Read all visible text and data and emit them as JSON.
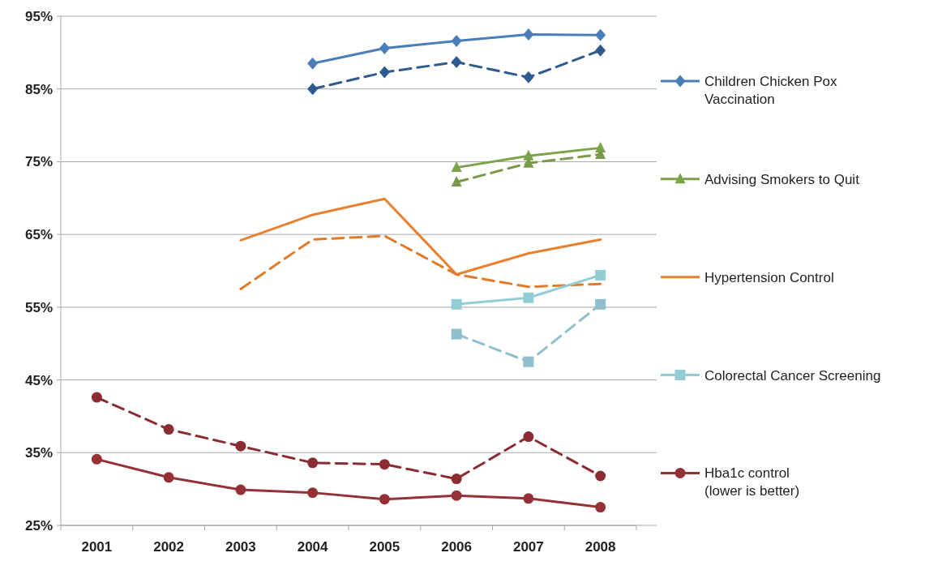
{
  "chart_data": {
    "type": "line",
    "categories": [
      "2001",
      "2002",
      "2003",
      "2004",
      "2005",
      "2006",
      "2007",
      "2008"
    ],
    "ylim": [
      25,
      95
    ],
    "yticks": [
      {
        "value": 25,
        "label": "25%"
      },
      {
        "value": 35,
        "label": "35%"
      },
      {
        "value": 45,
        "label": "45%"
      },
      {
        "value": 55,
        "label": "55%"
      },
      {
        "value": 65,
        "label": "65%"
      },
      {
        "value": 75,
        "label": "75%"
      },
      {
        "value": 85,
        "label": "85%"
      },
      {
        "value": 95,
        "label": "95%"
      }
    ],
    "grid": "y",
    "legend": "right",
    "series": [
      {
        "name": "Children Chicken Pox Vaccination",
        "color": "#4a7ebb",
        "marker": "diamond",
        "line_style": "solid",
        "values": [
          null,
          null,
          null,
          88.5,
          90.6,
          91.6,
          92.5,
          92.4
        ]
      },
      {
        "color": "#2e5a8f",
        "marker": "diamond",
        "line_style": "dashed",
        "values": [
          null,
          null,
          null,
          85.0,
          87.3,
          88.7,
          86.6,
          90.3
        ]
      },
      {
        "name": "Advising Smokers to Quit",
        "color": "#7ba34a",
        "marker": "triangle",
        "line_style": "solid",
        "values": [
          null,
          null,
          null,
          null,
          null,
          74.2,
          75.8,
          76.9
        ]
      },
      {
        "color": "#7a9a4a",
        "marker": "triangle",
        "line_style": "dashed",
        "values": [
          null,
          null,
          null,
          null,
          null,
          72.2,
          74.8,
          76.0
        ]
      },
      {
        "name": "Hypertension Control",
        "color": "#e8802e",
        "marker": "none",
        "line_style": "solid",
        "values": [
          null,
          null,
          64.2,
          67.7,
          69.9,
          59.5,
          62.4,
          64.3
        ]
      },
      {
        "color": "#e07b2a",
        "marker": "none",
        "line_style": "dashed",
        "values": [
          null,
          null,
          57.5,
          64.3,
          64.8,
          59.5,
          57.8,
          58.2
        ]
      },
      {
        "name": "Colorectal Cancer Screening",
        "color": "#93cdd4",
        "marker": "square",
        "line_style": "solid",
        "values": [
          null,
          null,
          null,
          null,
          null,
          55.4,
          56.3,
          59.4
        ]
      },
      {
        "color": "#8fbfcc",
        "marker": "square",
        "line_style": "dashed",
        "values": [
          null,
          null,
          null,
          null,
          null,
          51.3,
          47.5,
          55.4
        ]
      },
      {
        "name": "Hba1c control\n(lower is better)",
        "color": "#953037",
        "marker": "circle",
        "line_style": "solid",
        "values": [
          34.1,
          31.6,
          29.9,
          29.5,
          28.6,
          29.1,
          28.7,
          27.5
        ]
      },
      {
        "color": "#8b2c33",
        "marker": "circle",
        "line_style": "dashed",
        "values": [
          42.6,
          38.2,
          35.9,
          33.6,
          33.4,
          31.4,
          37.2,
          31.8
        ]
      }
    ]
  }
}
